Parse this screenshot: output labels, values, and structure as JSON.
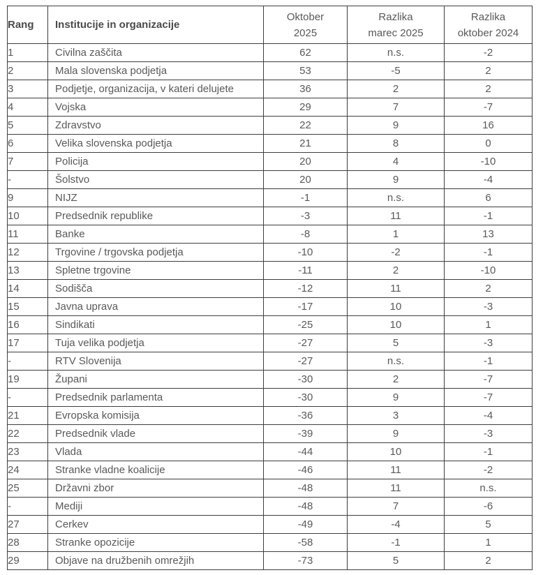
{
  "table": {
    "header": {
      "rang": "Rang",
      "institucije": "Institucije in organizacije",
      "oktober": {
        "line1": "Oktober",
        "line2": "2025"
      },
      "razlika_marec": {
        "line1": "Razlika",
        "line2": "marec 2025"
      },
      "razlika_oktober": {
        "line1": "Razlika",
        "line2": "oktober 2024"
      }
    },
    "rows": [
      [
        "1",
        "Civilna zaščita",
        "62",
        "n.s.",
        "-2"
      ],
      [
        "2",
        "Mala slovenska podjetja",
        "53",
        "-5",
        "2"
      ],
      [
        "3",
        "Podjetje, organizacija, v kateri delujete",
        "36",
        "2",
        "2"
      ],
      [
        "4",
        "Vojska",
        "29",
        "7",
        "-7"
      ],
      [
        "5",
        "Zdravstvo",
        "22",
        "9",
        "16"
      ],
      [
        "6",
        "Velika slovenska podjetja",
        "21",
        "8",
        "0"
      ],
      [
        "7",
        "Policija",
        "20",
        "4",
        "-10"
      ],
      [
        "-",
        "Šolstvo",
        "20",
        "9",
        "-4"
      ],
      [
        "9",
        "NIJZ",
        "-1",
        "n.s.",
        "6"
      ],
      [
        "10",
        "Predsednik republike",
        "-3",
        "11",
        "-1"
      ],
      [
        "11",
        "Banke",
        "-8",
        "1",
        "13"
      ],
      [
        "12",
        "Trgovine / trgovska podjetja",
        "-10",
        "-2",
        "-1"
      ],
      [
        "13",
        "Spletne trgovine",
        "-11",
        "2",
        "-10"
      ],
      [
        "14",
        "Sodišča",
        "-12",
        "11",
        "2"
      ],
      [
        "15",
        "Javna uprava",
        "-17",
        "10",
        "-3"
      ],
      [
        "16",
        "Sindikati",
        "-25",
        "10",
        "1"
      ],
      [
        "17",
        "Tuja velika podjetja",
        "-27",
        "5",
        "-3"
      ],
      [
        "-",
        "RTV Slovenija",
        "-27",
        "n.s.",
        "-1"
      ],
      [
        "19",
        "Župani",
        "-30",
        "2",
        "-7"
      ],
      [
        "-",
        "Predsednik parlamenta",
        "-30",
        "9",
        "-7"
      ],
      [
        "21",
        "Evropska komisija",
        "-36",
        "3",
        "-4"
      ],
      [
        "22",
        "Predsednik vlade",
        "-39",
        "9",
        "-3"
      ],
      [
        "23",
        "Vlada",
        "-44",
        "10",
        "-1"
      ],
      [
        "24",
        "Stranke vladne koalicije",
        "-46",
        "11",
        "-2"
      ],
      [
        "25",
        "Državni zbor",
        "-48",
        "11",
        "n.s."
      ],
      [
        "-",
        "Mediji",
        "-48",
        "7",
        "-6"
      ],
      [
        "27",
        "Cerkev",
        "-49",
        "-4",
        "5"
      ],
      [
        "28",
        "Stranke opozicije",
        "-58",
        "-1",
        "1"
      ],
      [
        "29",
        "Objave na družbenih omrežjih",
        "-73",
        "5",
        "2"
      ]
    ]
  }
}
